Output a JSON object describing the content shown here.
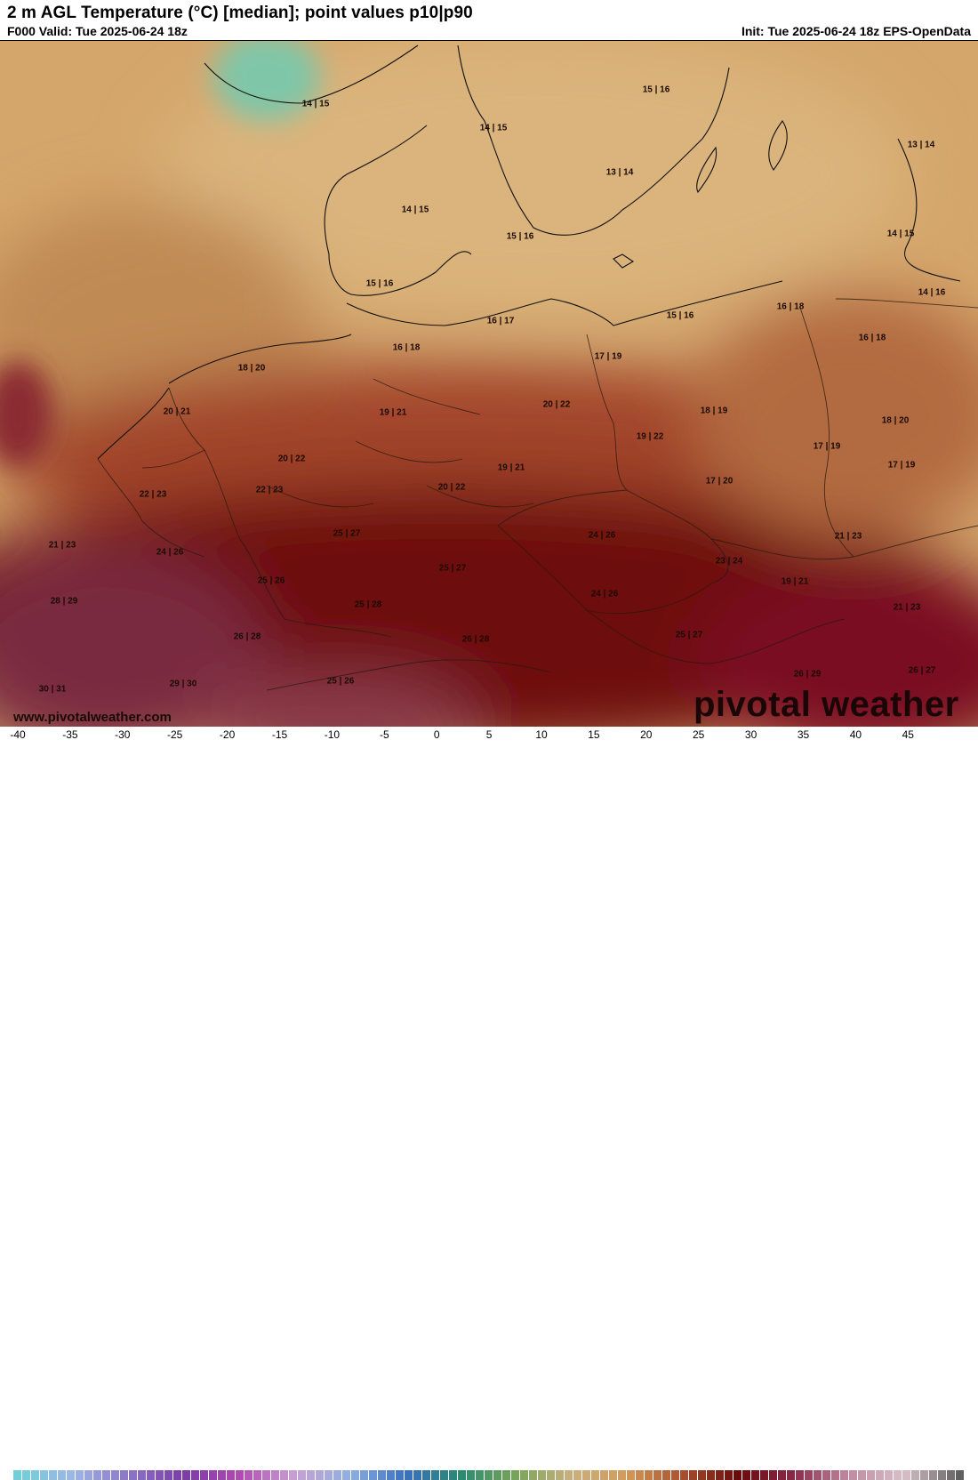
{
  "header": {
    "title": "2 m AGL Temperature (°C) [median]; point values p10|p90",
    "valid": "F000 Valid: Tue 2025-06-24 18z",
    "init": "Init: Tue 2025-06-24 18z EPS-OpenData"
  },
  "points": [
    {
      "label": "14 | 15"
    },
    {
      "label": "14 | 15"
    },
    {
      "label": "15 | 16"
    },
    {
      "label": "13 | 14"
    },
    {
      "label": "13 | 14"
    },
    {
      "label": "14 | 15"
    },
    {
      "label": "15 | 16"
    },
    {
      "label": "14 | 15"
    },
    {
      "label": "15 | 16"
    },
    {
      "label": "14 | 16"
    },
    {
      "label": "16 | 17"
    },
    {
      "label": "15 | 16"
    },
    {
      "label": "16 | 18"
    },
    {
      "label": "16 | 18"
    },
    {
      "label": "16 | 18"
    },
    {
      "label": "18 | 20"
    },
    {
      "label": "17 | 19"
    },
    {
      "label": "20 | 22"
    },
    {
      "label": "19 | 21"
    },
    {
      "label": "20 | 21"
    },
    {
      "label": "18 | 19"
    },
    {
      "label": "18 | 20"
    },
    {
      "label": "19 | 22"
    },
    {
      "label": "17 | 19"
    },
    {
      "label": "20 | 22"
    },
    {
      "label": "19 | 21"
    },
    {
      "label": "17 | 19"
    },
    {
      "label": "22 | 23"
    },
    {
      "label": "22 | 23"
    },
    {
      "label": "20 | 22"
    },
    {
      "label": "17 | 20"
    },
    {
      "label": "21 | 23"
    },
    {
      "label": "25 | 27"
    },
    {
      "label": "24 | 26"
    },
    {
      "label": "21 | 23"
    },
    {
      "label": "24 | 26"
    },
    {
      "label": "25 | 27"
    },
    {
      "label": "23 | 24"
    },
    {
      "label": "25 | 26"
    },
    {
      "label": "19 | 21"
    },
    {
      "label": "28 | 29"
    },
    {
      "label": "24 | 26"
    },
    {
      "label": "25 | 28"
    },
    {
      "label": "21 | 23"
    },
    {
      "label": "26 | 28"
    },
    {
      "label": "26 | 28"
    },
    {
      "label": "25 | 27"
    },
    {
      "label": "26 | 29"
    },
    {
      "label": "26 | 27"
    },
    {
      "label": "25 | 26"
    },
    {
      "label": "30 | 31"
    },
    {
      "label": "29 | 30"
    }
  ],
  "watermark": {
    "site": "www.pivotalweather.com",
    "brand": "pivotal weather"
  },
  "legend": {
    "ticks": [
      "-40",
      "-35",
      "-30",
      "-25",
      "-20",
      "-15",
      "-10",
      "-5",
      "0",
      "5",
      "10",
      "15",
      "20",
      "25",
      "30",
      "35",
      "40",
      "45"
    ],
    "colors": [
      "#6fd0d8",
      "#9fb6e6",
      "#8d76c6",
      "#7a3ca6",
      "#b04ab0",
      "#c8a0d2",
      "#8fb0e0",
      "#3a6fc0",
      "#2a8a70",
      "#7aa45a",
      "#c9b080",
      "#d29a5a",
      "#a8502e",
      "#6a0a0a",
      "#8a2a4a",
      "#c08aa0",
      "#d8c0c8",
      "#606060"
    ],
    "low_color": "#6fd0d8",
    "high_color": "#606060"
  },
  "map_colors": {
    "cool": "#d9b27a",
    "mild": "#c58f58",
    "warm": "#9a3a24",
    "hot": "#6e0a0e",
    "hottest": "#7a2a40",
    "cold": "#7fc6a8"
  }
}
